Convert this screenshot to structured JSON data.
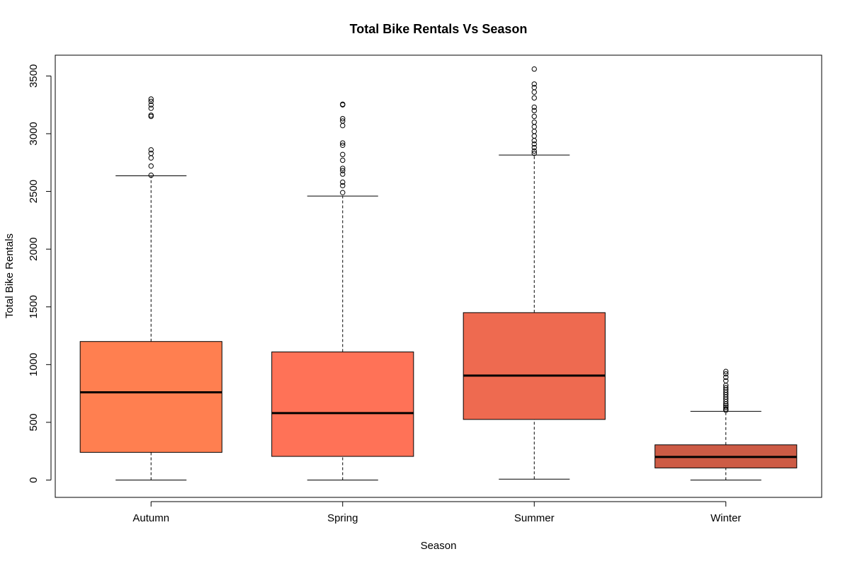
{
  "chart_data": {
    "type": "box",
    "title": "Total Bike Rentals Vs Season",
    "xlabel": "Season",
    "ylabel": "Total Bike Rentals",
    "ylim": [
      -150,
      3680
    ],
    "yticks": [
      0,
      500,
      1000,
      1500,
      2000,
      2500,
      3000,
      3500
    ],
    "grid": false,
    "categories": [
      "Autumn",
      "Spring",
      "Summer",
      "Winter"
    ],
    "boxes": [
      {
        "category": "Autumn",
        "min": 0,
        "q1": 240,
        "median": 760,
        "q3": 1200,
        "max": 2635,
        "color": "#ff7f50",
        "outliers": [
          2640,
          2720,
          2790,
          2830,
          2860,
          3150,
          3160,
          3220,
          3250,
          3280,
          3300
        ]
      },
      {
        "category": "Spring",
        "min": 0,
        "q1": 205,
        "median": 580,
        "q3": 1110,
        "max": 2460,
        "color": "#ff7257",
        "outliers": [
          2490,
          2550,
          2580,
          2650,
          2680,
          2700,
          2770,
          2820,
          2900,
          2920,
          3070,
          3110,
          3130,
          3250,
          3255
        ]
      },
      {
        "category": "Summer",
        "min": 8,
        "q1": 525,
        "median": 905,
        "q3": 1450,
        "max": 2815,
        "color": "#ee6a50",
        "outliers": [
          2830,
          2850,
          2880,
          2910,
          2940,
          2980,
          3020,
          3060,
          3100,
          3150,
          3200,
          3230,
          3310,
          3360,
          3400,
          3430,
          3560
        ]
      },
      {
        "category": "Winter",
        "min": 0,
        "q1": 105,
        "median": 200,
        "q3": 305,
        "max": 595,
        "color": "#cd5b45",
        "outliers": [
          605,
          615,
          630,
          645,
          660,
          680,
          700,
          720,
          740,
          760,
          780,
          800,
          820,
          860,
          890,
          920,
          940
        ]
      }
    ]
  }
}
